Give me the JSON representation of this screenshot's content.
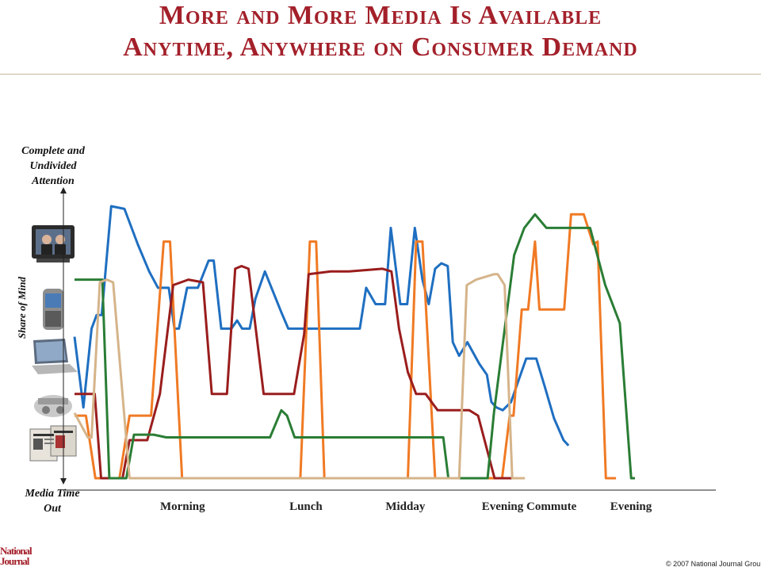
{
  "title_line1": "More and More Media Is Available",
  "title_line2": "Anytime, Anywhere on Consumer Demand",
  "copyright": "© 2007 National Journal Grou",
  "logo_text": "National Journal",
  "colors": {
    "title": "#a3202a",
    "blue": "#1f6fc1",
    "orange": "#f07a24",
    "red": "#9a1d1d",
    "green": "#2a7d35",
    "tan": "#d5b48a"
  },
  "icons": [
    "tv-icon",
    "smartphone-icon",
    "laptop-icon",
    "radio-icon",
    "newspaper-icon"
  ],
  "chart_data": {
    "type": "line",
    "x_label": "",
    "y_label": "Share of Mind",
    "y_top_label": "Complete and Undivided Attention",
    "y_bottom_label": "Media Time Out",
    "x_ticks": [
      {
        "label": "Morning",
        "x": 171
      },
      {
        "label": "Lunch",
        "x": 366
      },
      {
        "label": "Midday",
        "x": 523
      },
      {
        "label": "Evening Commute",
        "x": 719
      },
      {
        "label": "Evening",
        "x": 880
      }
    ],
    "x_range": [
      0,
      1000
    ],
    "y_range": [
      0,
      100
    ],
    "grid": false,
    "legend": "none",
    "series": [
      {
        "color": "#1f6fc1",
        "points": [
          [
            0,
            52
          ],
          [
            14,
            26
          ],
          [
            27,
            55
          ],
          [
            35,
            60
          ],
          [
            43,
            60
          ],
          [
            58,
            100
          ],
          [
            79,
            99
          ],
          [
            100,
            86
          ],
          [
            118,
            76
          ],
          [
            132,
            70
          ],
          [
            149,
            70
          ],
          [
            158,
            55
          ],
          [
            165,
            55
          ],
          [
            178,
            70
          ],
          [
            195,
            70
          ],
          [
            212,
            80
          ],
          [
            220,
            80
          ],
          [
            232,
            55
          ],
          [
            248,
            55
          ],
          [
            257,
            58
          ],
          [
            265,
            55
          ],
          [
            277,
            55
          ],
          [
            286,
            66
          ],
          [
            301,
            76
          ],
          [
            327,
            61
          ],
          [
            338,
            55
          ],
          [
            451,
            55
          ],
          [
            461,
            70
          ],
          [
            476,
            64
          ],
          [
            491,
            64
          ],
          [
            500,
            92
          ],
          [
            515,
            64
          ],
          [
            526,
            64
          ],
          [
            538,
            92
          ],
          [
            550,
            73
          ],
          [
            560,
            64
          ],
          [
            570,
            77
          ],
          [
            580,
            79
          ],
          [
            590,
            78
          ],
          [
            598,
            50
          ],
          [
            608,
            45
          ],
          [
            621,
            50
          ],
          [
            640,
            42
          ],
          [
            652,
            38
          ],
          [
            659,
            28
          ],
          [
            667,
            26
          ],
          [
            677,
            25
          ],
          [
            690,
            28
          ],
          [
            702,
            36
          ],
          [
            714,
            44
          ],
          [
            721,
            44
          ],
          [
            730,
            44
          ],
          [
            743,
            34
          ],
          [
            758,
            22
          ],
          [
            773,
            14
          ],
          [
            781,
            12
          ]
        ]
      },
      {
        "color": "#f07a24",
        "points": [
          [
            0,
            23
          ],
          [
            18,
            23
          ],
          [
            33,
            0
          ],
          [
            71,
            0
          ],
          [
            87,
            23
          ],
          [
            121,
            23
          ],
          [
            141,
            87
          ],
          [
            151,
            87
          ],
          [
            170,
            0
          ],
          [
            357,
            0
          ],
          [
            372,
            87
          ],
          [
            382,
            87
          ],
          [
            395,
            0
          ],
          [
            527,
            0
          ],
          [
            540,
            87
          ],
          [
            550,
            87
          ],
          [
            570,
            0
          ],
          [
            676,
            0
          ],
          [
            688,
            23
          ],
          [
            694,
            23
          ],
          [
            707,
            62
          ],
          [
            717,
            62
          ],
          [
            728,
            87
          ],
          [
            735,
            62
          ],
          [
            774,
            62
          ],
          [
            785,
            97
          ],
          [
            805,
            97
          ],
          [
            820,
            86
          ],
          [
            827,
            87
          ],
          [
            840,
            0
          ],
          [
            856,
            0
          ]
        ]
      },
      {
        "color": "#9a1d1d",
        "points": [
          [
            0,
            31
          ],
          [
            32,
            31
          ],
          [
            42,
            0
          ],
          [
            76,
            0
          ],
          [
            87,
            14
          ],
          [
            115,
            14
          ],
          [
            135,
            31
          ],
          [
            156,
            71
          ],
          [
            180,
            73
          ],
          [
            203,
            72
          ],
          [
            217,
            31
          ],
          [
            241,
            31
          ],
          [
            254,
            77
          ],
          [
            264,
            78
          ],
          [
            275,
            77
          ],
          [
            299,
            31
          ],
          [
            347,
            31
          ],
          [
            363,
            53
          ],
          [
            370,
            75
          ],
          [
            405,
            76
          ],
          [
            434,
            76
          ],
          [
            487,
            77
          ],
          [
            501,
            76
          ],
          [
            513,
            55
          ],
          [
            527,
            39
          ],
          [
            540,
            31
          ],
          [
            555,
            31
          ],
          [
            574,
            25
          ],
          [
            624,
            25
          ],
          [
            638,
            23
          ],
          [
            664,
            0
          ],
          [
            698,
            0
          ]
        ]
      },
      {
        "color": "#2a7d35",
        "points": [
          [
            0,
            73
          ],
          [
            44,
            73
          ],
          [
            55,
            0
          ],
          [
            82,
            0
          ],
          [
            94,
            16
          ],
          [
            121,
            16
          ],
          [
            125,
            16
          ],
          [
            145,
            15
          ],
          [
            309,
            15
          ],
          [
            327,
            25
          ],
          [
            336,
            23
          ],
          [
            348,
            15
          ],
          [
            583,
            15
          ],
          [
            591,
            0
          ],
          [
            653,
            0
          ],
          [
            663,
            24
          ],
          [
            695,
            82
          ],
          [
            711,
            92
          ],
          [
            728,
            97
          ],
          [
            746,
            92
          ],
          [
            815,
            92
          ],
          [
            839,
            71
          ],
          [
            862,
            57
          ],
          [
            880,
            0
          ],
          [
            886,
            0
          ]
        ]
      },
      {
        "color": "#d5b48a",
        "points": [
          [
            0,
            24
          ],
          [
            21,
            15
          ],
          [
            27,
            15
          ],
          [
            40,
            72
          ],
          [
            51,
            73
          ],
          [
            61,
            72
          ],
          [
            87,
            0
          ],
          [
            608,
            0
          ],
          [
            620,
            71
          ],
          [
            635,
            73
          ],
          [
            663,
            75
          ],
          [
            669,
            75
          ],
          [
            680,
            71
          ],
          [
            692,
            0
          ],
          [
            712,
            0
          ]
        ]
      }
    ]
  }
}
